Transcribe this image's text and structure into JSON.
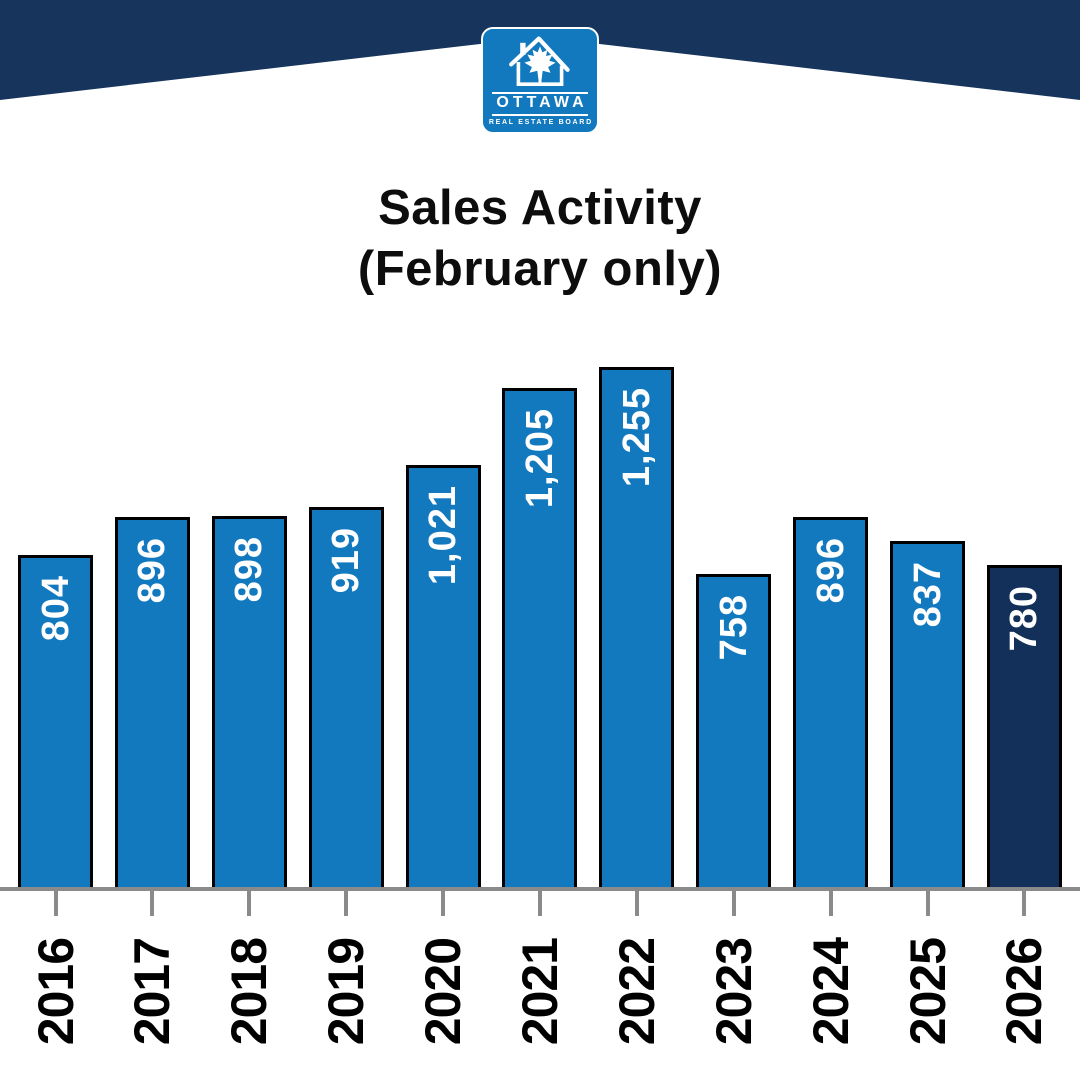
{
  "logo": {
    "name": "OTTAWA",
    "tagline": "REAL ESTATE BOARD"
  },
  "title": {
    "line1": "Sales Activity",
    "line2": "(February only)"
  },
  "chart_data": {
    "type": "bar",
    "title": "Sales Activity (February only)",
    "categories": [
      "2016",
      "2017",
      "2018",
      "2019",
      "2020",
      "2021",
      "2022",
      "2023",
      "2024",
      "2025",
      "2026"
    ],
    "values": [
      804,
      896,
      898,
      919,
      1021,
      1205,
      1255,
      758,
      896,
      837,
      780
    ],
    "value_labels": [
      "804",
      "896",
      "898",
      "919",
      "1,021",
      "1,205",
      "1,255",
      "758",
      "896",
      "837",
      "780"
    ],
    "xlabel": "",
    "ylabel": "",
    "ylim": [
      0,
      1255
    ],
    "grid": false,
    "legend": "none",
    "orientation": "vertical",
    "value_label_rotation_deg": 90,
    "bar_color": "#1379BF",
    "highlight_index": 10,
    "highlight_color": "#12305A",
    "value_label_color": "#FFFFFF"
  },
  "colors": {
    "header_navy": "#17345C",
    "background": "#FFFFFF",
    "bar_outline": "#000000",
    "axis_gray": "#8A8A8A",
    "title_text": "#0D0D0D",
    "year_text": "#000000",
    "logo_blue": "#1379BF",
    "logo_content": "#FFFFFF"
  }
}
